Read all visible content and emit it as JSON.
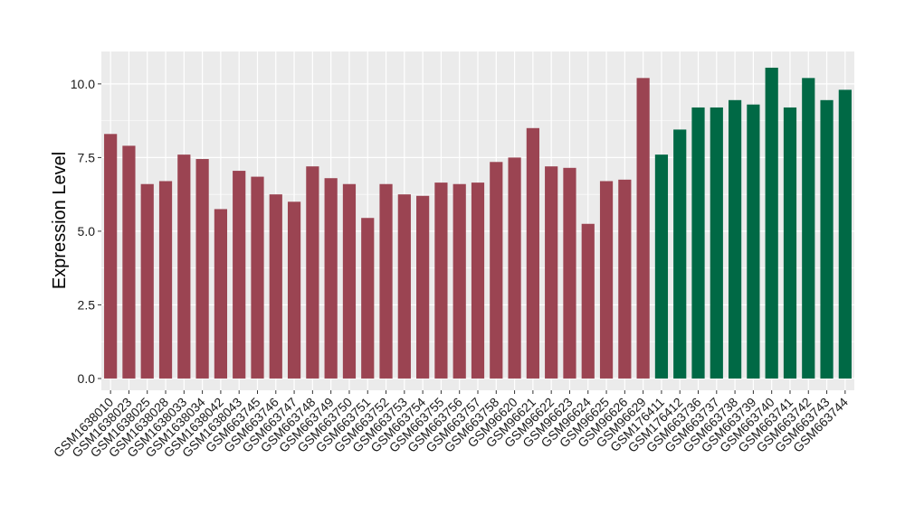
{
  "chart_data": {
    "type": "bar",
    "title": "",
    "xlabel": "",
    "ylabel": "Expression Level",
    "ylim": [
      -0.4,
      11.1
    ],
    "yticks": [
      0.0,
      2.5,
      5.0,
      7.5,
      10.0
    ],
    "ytick_labels": [
      "0.0",
      "2.5",
      "5.0",
      "7.5",
      "10.0"
    ],
    "grid": true,
    "legend": "none",
    "panel_background": "#ebebeb",
    "grid_color": "#ffffff",
    "categories": [
      "GSM1638010",
      "GSM1638023",
      "GSM1638025",
      "GSM1638028",
      "GSM1638033",
      "GSM1638034",
      "GSM1638042",
      "GSM1638043",
      "GSM663745",
      "GSM663746",
      "GSM663747",
      "GSM663748",
      "GSM663749",
      "GSM663750",
      "GSM663751",
      "GSM663752",
      "GSM663753",
      "GSM663754",
      "GSM663755",
      "GSM663756",
      "GSM663757",
      "GSM663758",
      "GSM96620",
      "GSM96621",
      "GSM96622",
      "GSM96623",
      "GSM96624",
      "GSM96625",
      "GSM96626",
      "GSM96629",
      "GSM176411",
      "GSM176412",
      "GSM663736",
      "GSM663737",
      "GSM663738",
      "GSM663739",
      "GSM663740",
      "GSM663741",
      "GSM663742",
      "GSM663743",
      "GSM663744"
    ],
    "values": [
      8.3,
      7.9,
      6.6,
      6.7,
      7.6,
      7.45,
      5.75,
      7.05,
      6.85,
      6.25,
      6.0,
      7.2,
      6.8,
      6.6,
      5.45,
      6.6,
      6.25,
      6.2,
      6.65,
      6.6,
      6.65,
      7.35,
      7.5,
      8.5,
      7.2,
      7.15,
      5.25,
      6.7,
      6.75,
      10.2,
      7.6,
      8.45,
      9.2,
      9.2,
      9.45,
      9.3,
      10.55,
      9.2,
      10.2,
      9.45,
      9.8
    ],
    "bar_colors": [
      "#9b4452",
      "#9b4452",
      "#9b4452",
      "#9b4452",
      "#9b4452",
      "#9b4452",
      "#9b4452",
      "#9b4452",
      "#9b4452",
      "#9b4452",
      "#9b4452",
      "#9b4452",
      "#9b4452",
      "#9b4452",
      "#9b4452",
      "#9b4452",
      "#9b4452",
      "#9b4452",
      "#9b4452",
      "#9b4452",
      "#9b4452",
      "#9b4452",
      "#9b4452",
      "#9b4452",
      "#9b4452",
      "#9b4452",
      "#9b4452",
      "#9b4452",
      "#9b4452",
      "#9b4452",
      "#006945",
      "#006945",
      "#006945",
      "#006945",
      "#006945",
      "#006945",
      "#006945",
      "#006945",
      "#006945",
      "#006945",
      "#006945"
    ]
  }
}
